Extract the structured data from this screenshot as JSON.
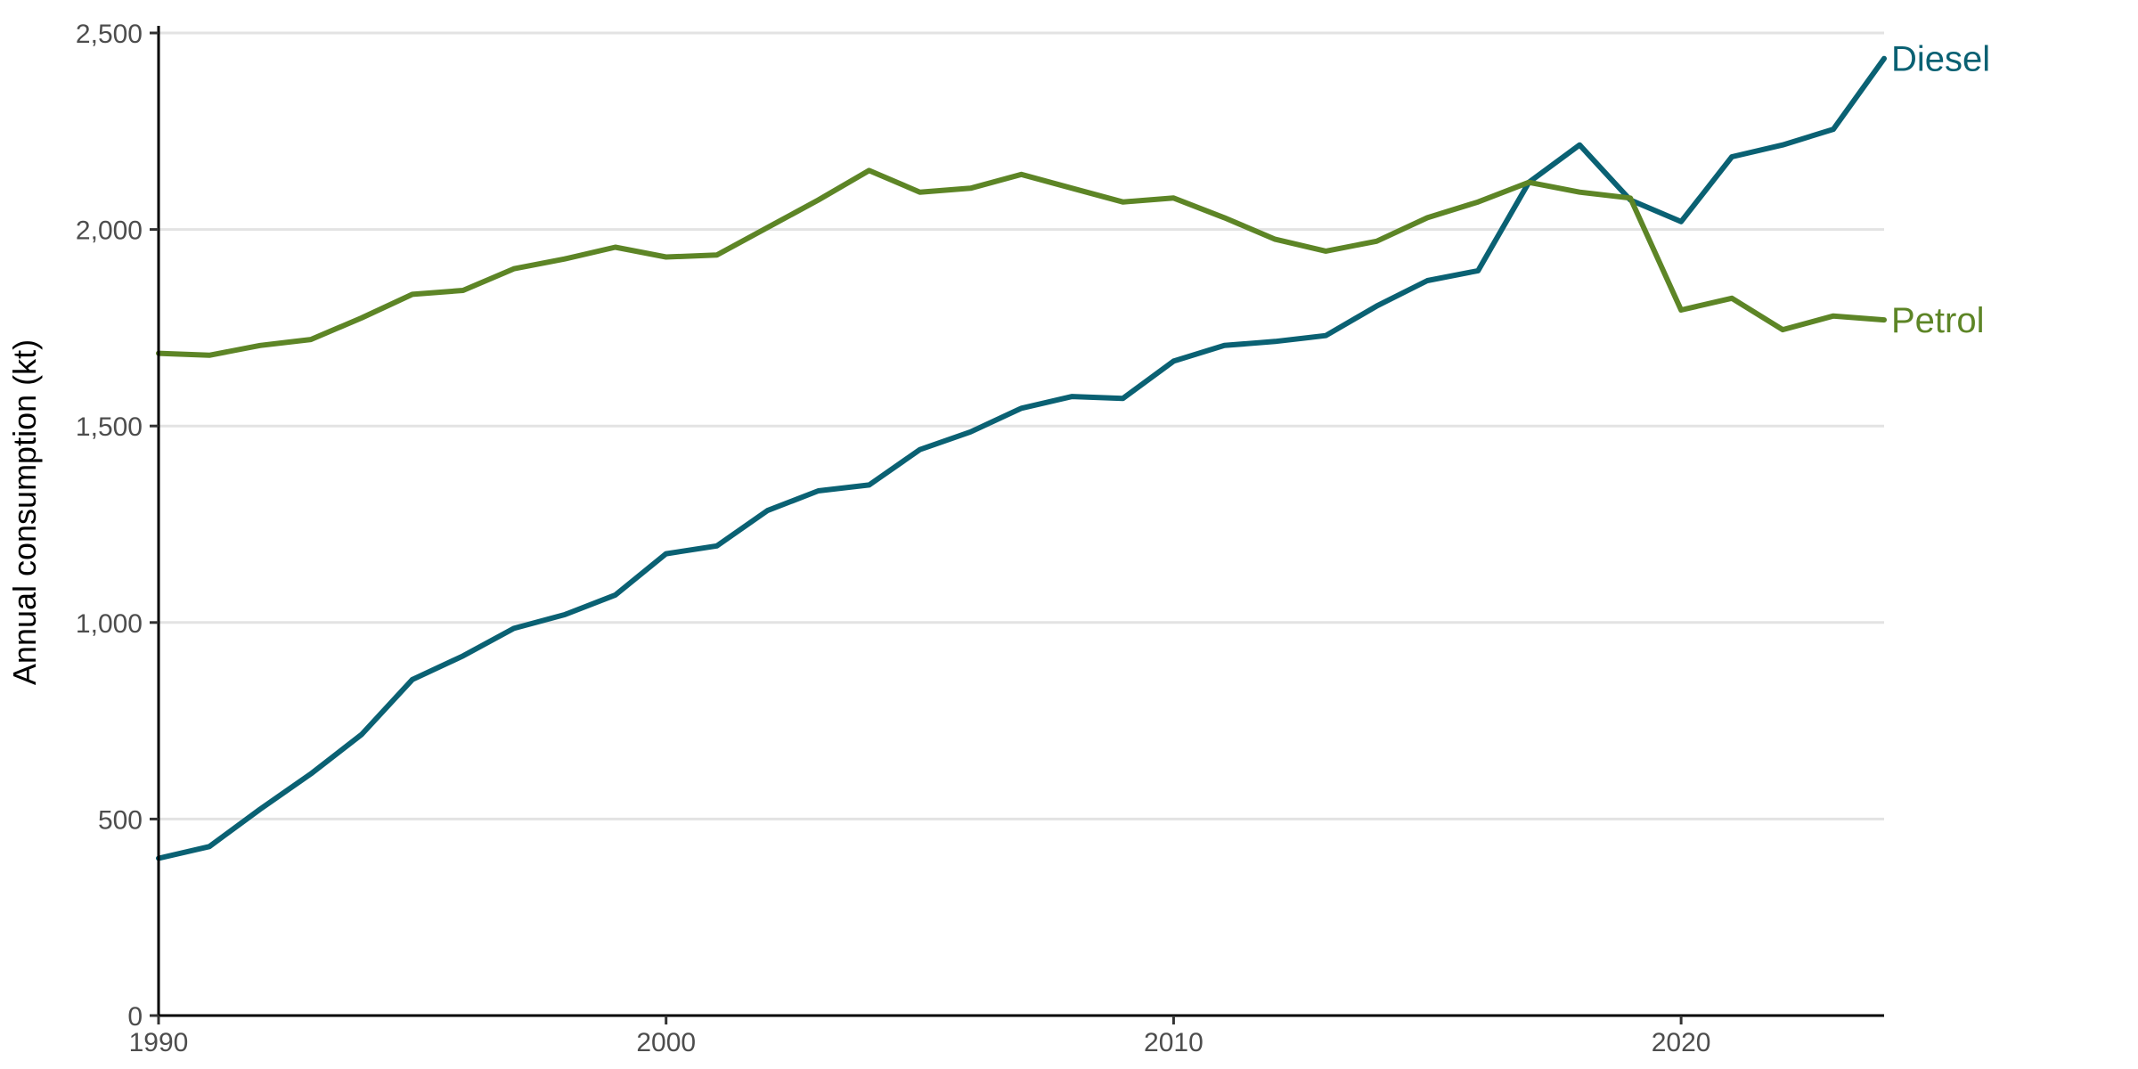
{
  "chart_data": {
    "type": "line",
    "ylabel": "Annual consumption (kt)",
    "xlabel": "",
    "title": "",
    "xlim": [
      1990,
      2024
    ],
    "ylim": [
      0,
      2500
    ],
    "x_ticks": [
      1990,
      2000,
      2010,
      2020
    ],
    "x_tick_labels": [
      "1990",
      "2000",
      "2010",
      "2020"
    ],
    "y_ticks": [
      0,
      500,
      1000,
      1500,
      2000,
      2500
    ],
    "y_tick_labels": [
      "0",
      "500",
      "1,000",
      "1,500",
      "2,000",
      "2,500"
    ],
    "grid": "horizontal",
    "legend": "direct labels at line ends",
    "x": [
      1990,
      1991,
      1992,
      1993,
      1994,
      1995,
      1996,
      1997,
      1998,
      1999,
      2000,
      2001,
      2002,
      2003,
      2004,
      2005,
      2006,
      2007,
      2008,
      2009,
      2010,
      2011,
      2012,
      2013,
      2014,
      2015,
      2016,
      2017,
      2018,
      2019,
      2020,
      2021,
      2022,
      2023,
      2024
    ],
    "series": [
      {
        "name": "Diesel",
        "color": "#0a6173",
        "values": [
          400,
          430,
          525,
          615,
          715,
          855,
          915,
          985,
          1020,
          1070,
          1175,
          1195,
          1285,
          1335,
          1350,
          1440,
          1485,
          1545,
          1575,
          1570,
          1665,
          1705,
          1715,
          1730,
          1805,
          1870,
          1895,
          2120,
          2215,
          2075,
          2020,
          2185,
          2215,
          2255,
          2435
        ]
      },
      {
        "name": "Petrol",
        "color": "#5d8526",
        "values": [
          1685,
          1680,
          1705,
          1720,
          1775,
          1835,
          1845,
          1900,
          1925,
          1955,
          1930,
          1935,
          2005,
          2075,
          2150,
          2095,
          2105,
          2140,
          2105,
          2070,
          2080,
          2030,
          1975,
          1945,
          1970,
          2030,
          2070,
          2120,
          2095,
          2080,
          1795,
          1825,
          1745,
          1780,
          1770
        ]
      }
    ]
  }
}
